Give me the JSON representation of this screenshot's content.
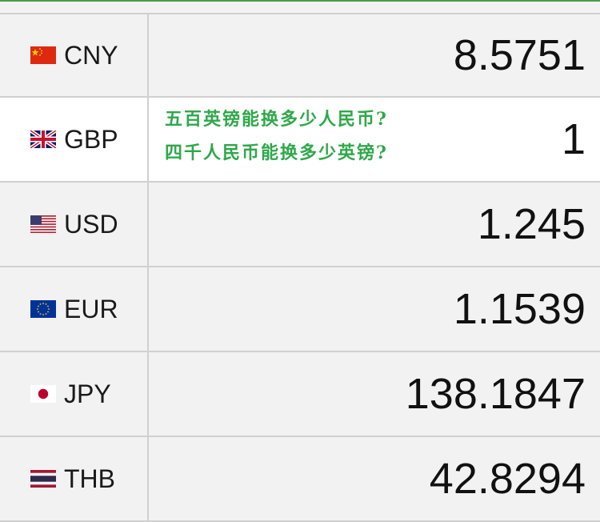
{
  "rows": [
    {
      "code": "CNY",
      "value": "8.5751",
      "flag": "cn-flag-icon"
    },
    {
      "code": "GBP",
      "value": "1",
      "flag": "gb-flag-icon"
    },
    {
      "code": "USD",
      "value": "1.245",
      "flag": "us-flag-icon"
    },
    {
      "code": "EUR",
      "value": "1.1539",
      "flag": "eu-flag-icon"
    },
    {
      "code": "JPY",
      "value": "138.1847",
      "flag": "jp-flag-icon"
    },
    {
      "code": "THB",
      "value": "42.8294",
      "flag": "th-flag-icon"
    }
  ],
  "annotation": {
    "line1": "五百英镑能换多少人民币?",
    "line2": "四千人民币能换多少英镑?"
  },
  "colors": {
    "annotation": "#2ea84a",
    "accent_line": "#4c9a4c"
  }
}
